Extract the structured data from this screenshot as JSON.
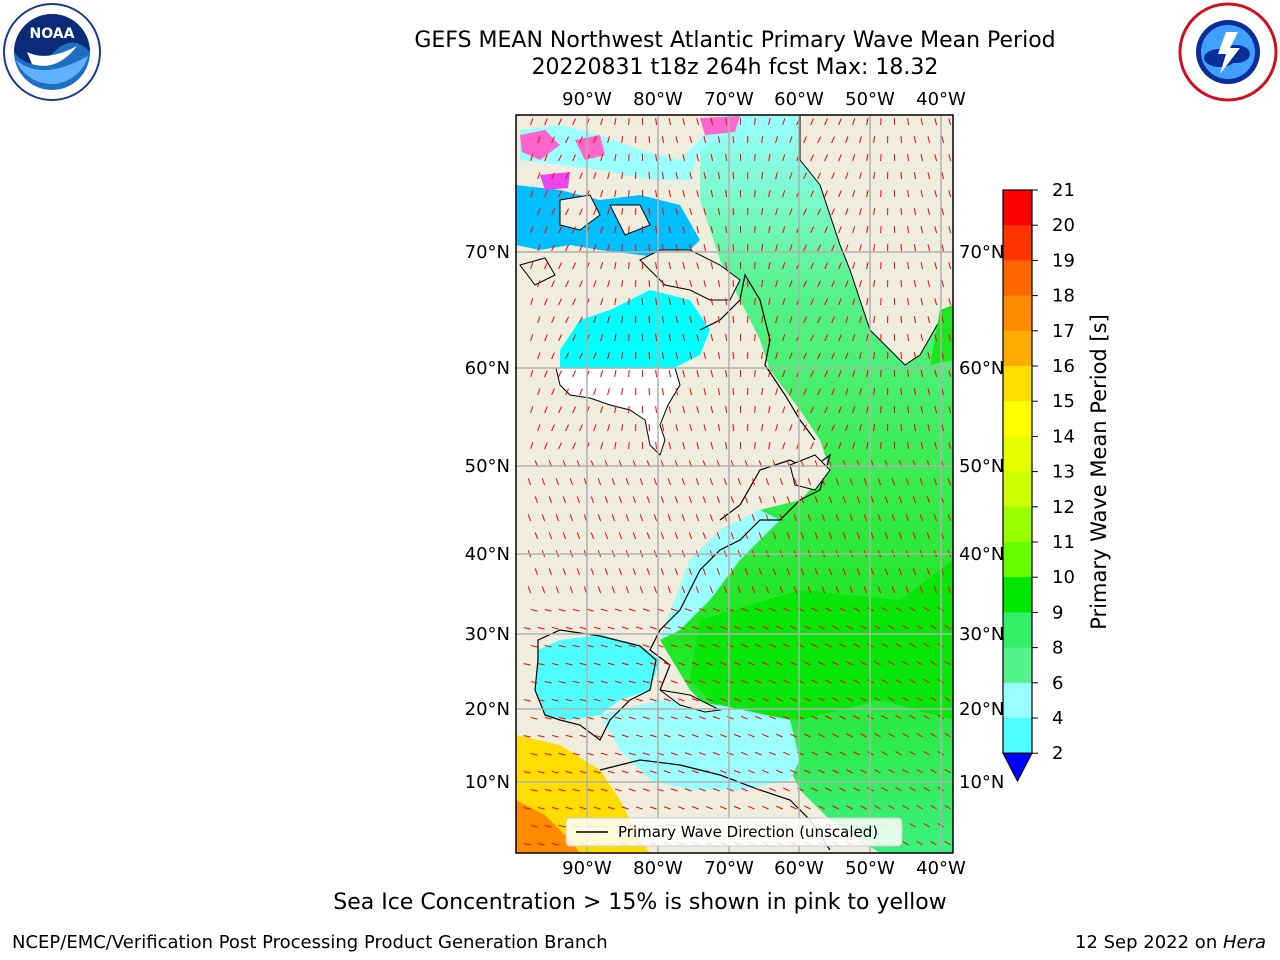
{
  "title": {
    "line1": "GEFS MEAN Northwest Atlantic Primary Wave Mean Period",
    "line2": "20220831 t18z 264h fcst   Max: 18.32"
  },
  "map": {
    "lon_ticks": [
      "90°W",
      "80°W",
      "70°W",
      "60°W",
      "50°W",
      "40°W"
    ],
    "lat_ticks": [
      "70°N",
      "60°N",
      "50°N",
      "40°N",
      "30°N",
      "20°N",
      "10°N"
    ],
    "legend_label": "Primary Wave Direction (unscaled)",
    "colors": {
      "land": "#efedde",
      "ocean_mid": "#4df28a",
      "ocean_high": "#19e619",
      "ocean_low": "#00ffff",
      "ocean_light": "#99ffff",
      "ice": "#ff66cc",
      "arrow": "#ff0000"
    }
  },
  "colorbar": {
    "label": "Primary Wave Mean Period [s]",
    "ticks": [
      "21",
      "20",
      "19",
      "18",
      "17",
      "16",
      "15",
      "14",
      "13",
      "12",
      "11",
      "10",
      "9",
      "8",
      "6",
      "4",
      "2"
    ],
    "colors": [
      "#ff0000",
      "#ff3300",
      "#ff6600",
      "#ff8c00",
      "#ffaa00",
      "#ffdd00",
      "#ffff00",
      "#e6ff00",
      "#ccff00",
      "#99ff00",
      "#66ff00",
      "#00e600",
      "#33ee66",
      "#55f28a",
      "#99ffff",
      "#4dffff",
      "#00ffff",
      "#00bfff",
      "#0066ff"
    ],
    "extend_color": "#0000ff"
  },
  "caption": "Sea Ice Concentration > 15% is shown in pink to yellow",
  "footer": {
    "left": "NCEP/EMC/Verification Post Processing Product Generation Branch",
    "right_date": "12 Sep 2022 on ",
    "right_host": "Hera"
  }
}
